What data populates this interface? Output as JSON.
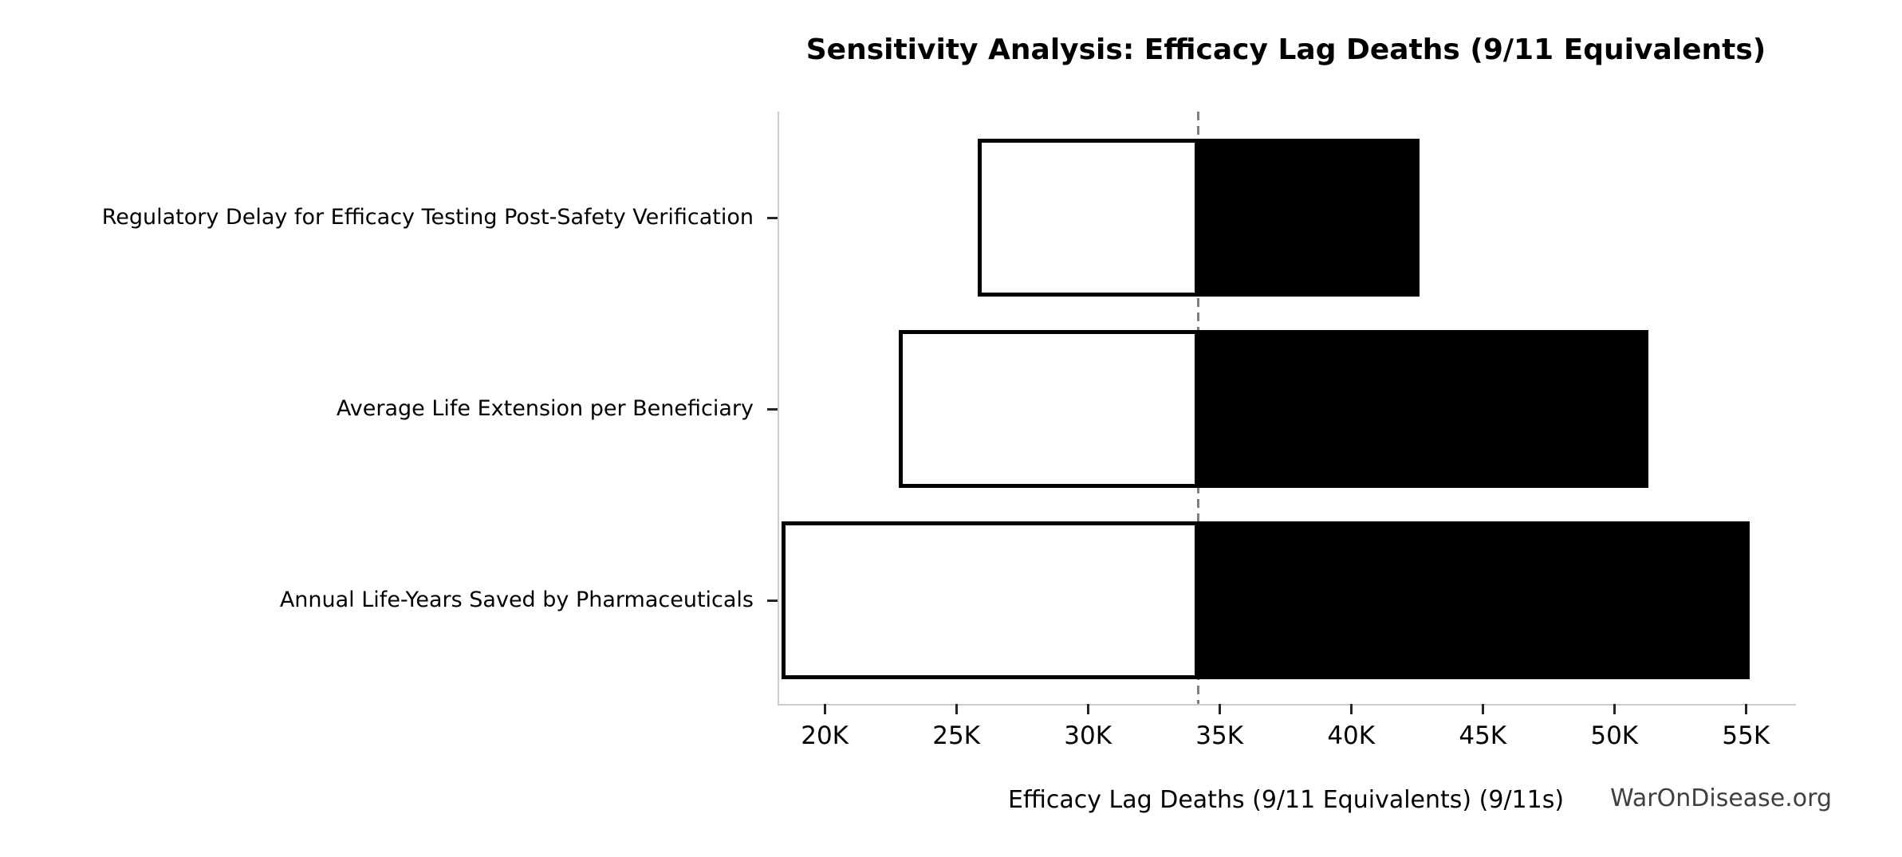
{
  "figure": {
    "watermark": "WarOnDisease.org"
  },
  "chart_data": {
    "type": "bar",
    "variant": "tornado-sensitivity",
    "title": "Sensitivity Analysis: Efficacy Lag Deaths (9/11 Equivalents)",
    "xlabel": "Efficacy Lag Deaths (9/11 Equivalents) (9/11s)",
    "ylabel": "",
    "categories": [
      "Regulatory Delay for Efficacy Testing Post-Safety Verification",
      "Average Life Extension per Beneficiary",
      "Annual Life-Years Saved by Pharmaceuticals"
    ],
    "baseline": 34200,
    "series": [
      {
        "name": "low",
        "values": [
          25800,
          22800,
          18350
        ]
      },
      {
        "name": "high",
        "values": [
          42600,
          51300,
          55150
        ]
      }
    ],
    "xlim": [
      18270,
      56900
    ],
    "xticks": [
      20000,
      25000,
      30000,
      35000,
      40000,
      45000,
      50000,
      55000
    ],
    "xtick_labels": [
      "20K",
      "25K",
      "30K",
      "35K",
      "40K",
      "45K",
      "50K",
      "55K"
    ],
    "grid": false,
    "legend": false,
    "baseline_style": "dashed",
    "colors": {
      "low_fill": "#ffffff",
      "high_fill": "#000000",
      "bar_edge": "#000000",
      "baseline": "#7f7f7f",
      "spine": "#cccccc",
      "tick": "#262626",
      "text": "#000000",
      "watermark": "#404040"
    }
  }
}
